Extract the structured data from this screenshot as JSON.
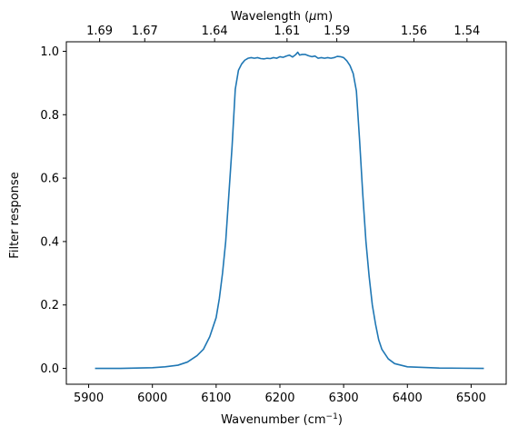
{
  "chart_data": {
    "type": "line",
    "xlabel": "Wavenumber (cm",
    "xlabel_sup": "−1",
    "xlabel_suffix": ")",
    "ylabel": "Filter response",
    "top_xlabel_prefix": "Wavelength (",
    "top_xlabel_mu": "μ",
    "top_xlabel_suffix": "m)",
    "xlim": [
      5865,
      6555
    ],
    "ylim": [
      -0.05,
      1.03
    ],
    "xticks": [
      5900,
      6000,
      6100,
      6200,
      6300,
      6400,
      6500
    ],
    "xtick_labels": [
      "5900",
      "6000",
      "6100",
      "6200",
      "6300",
      "6400",
      "6500"
    ],
    "yticks": [
      0.0,
      0.2,
      0.4,
      0.6,
      0.8,
      1.0
    ],
    "ytick_labels": [
      "0.0",
      "0.2",
      "0.4",
      "0.6",
      "0.8",
      "1.0"
    ],
    "top_ticks": [
      {
        "label": "1.69",
        "wavenumber": 5917.2
      },
      {
        "label": "1.67",
        "wavenumber": 5988.0
      },
      {
        "label": "1.64",
        "wavenumber": 6097.6
      },
      {
        "label": "1.61",
        "wavenumber": 6211.2
      },
      {
        "label": "1.59",
        "wavenumber": 6289.3
      },
      {
        "label": "1.56",
        "wavenumber": 6410.3
      },
      {
        "label": "1.54",
        "wavenumber": 6493.5
      }
    ],
    "grid": false,
    "color": "#1f77b4",
    "series": [
      {
        "x": [
          5910,
          5950,
          6000,
          6020,
          6040,
          6055,
          6070,
          6080,
          6090,
          6100,
          6105,
          6110,
          6115,
          6120,
          6125,
          6130,
          6135,
          6140,
          6145,
          6150,
          6155,
          6160,
          6165,
          6170,
          6175,
          6180,
          6185,
          6190,
          6195,
          6200,
          6205,
          6210,
          6215,
          6220,
          6225,
          6228,
          6231,
          6235,
          6240,
          6245,
          6250,
          6255,
          6260,
          6265,
          6270,
          6275,
          6280,
          6285,
          6290,
          6295,
          6300,
          6305,
          6310,
          6315,
          6320,
          6325,
          6330,
          6335,
          6340,
          6345,
          6350,
          6355,
          6360,
          6370,
          6380,
          6400,
          6450,
          6520
        ],
        "y": [
          0.0,
          0.0,
          0.002,
          0.005,
          0.01,
          0.02,
          0.04,
          0.06,
          0.1,
          0.16,
          0.22,
          0.3,
          0.4,
          0.55,
          0.7,
          0.88,
          0.94,
          0.96,
          0.972,
          0.978,
          0.98,
          0.978,
          0.98,
          0.977,
          0.976,
          0.978,
          0.977,
          0.98,
          0.978,
          0.983,
          0.981,
          0.985,
          0.988,
          0.982,
          0.99,
          0.997,
          0.988,
          0.99,
          0.99,
          0.986,
          0.983,
          0.985,
          0.978,
          0.98,
          0.978,
          0.98,
          0.978,
          0.98,
          0.984,
          0.983,
          0.98,
          0.97,
          0.955,
          0.93,
          0.875,
          0.72,
          0.55,
          0.4,
          0.29,
          0.2,
          0.14,
          0.09,
          0.06,
          0.03,
          0.015,
          0.005,
          0.001,
          0.0
        ]
      }
    ]
  }
}
